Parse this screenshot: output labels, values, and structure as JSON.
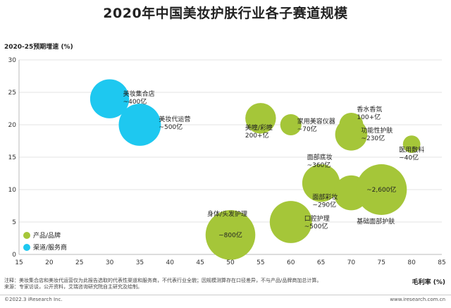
{
  "title": "2020年中国美妆护肤行业各子赛道规模",
  "notes": [
    "注释：美妆集合店和美妆代运营仅为此报告选取的代表性渠道和服务商，不代表行业全貌；因规模测算存在口径差异，不与产品/品牌商加总计算。",
    "来源：专家访谈，公开资料，艾瑞咨询研究院自主研究及绘制。"
  ],
  "footer": {
    "copyright": "©2022.3 iResearch Inc.",
    "site": "www.iresearch.com.cn"
  },
  "colors": {
    "product": "#a5c639",
    "channel": "#1ec8f0",
    "axis": "#bbbbbb",
    "grid": "#e3e3e3"
  },
  "chart_data": {
    "type": "scatter",
    "xlabel": "毛利率 (%)",
    "ylabel": "2020-25预期增速 (%)",
    "xlim": [
      15,
      85
    ],
    "ylim": [
      0,
      30
    ],
    "x_ticks": [
      15,
      20,
      25,
      30,
      35,
      40,
      45,
      50,
      55,
      60,
      65,
      70,
      75,
      80,
      85
    ],
    "y_ticks": [
      0,
      5,
      10,
      15,
      20,
      25,
      30
    ],
    "legend": {
      "placement": "bottom-left",
      "entries": [
        "产品/品牌",
        "渠道/服务商"
      ]
    },
    "series": [
      {
        "name": "产品/品牌",
        "points": [
          {
            "x": 55,
            "y": 21,
            "size": 200,
            "label": [
              "美瞳/彩瞳",
              "200+亿"
            ]
          },
          {
            "x": 60,
            "y": 20,
            "size": 70,
            "label": [
              "家用美容仪器",
              "~70亿"
            ]
          },
          {
            "x": 70,
            "y": 20,
            "size": 100,
            "label": [
              "香水香氛",
              "100+亿"
            ]
          },
          {
            "x": 70,
            "y": 18.5,
            "size": 230,
            "label": [
              "功能性护肤",
              "~230亿"
            ]
          },
          {
            "x": 80,
            "y": 17,
            "size": 40,
            "label": [
              "医用敷料",
              "~40亿"
            ]
          },
          {
            "x": 65,
            "y": 11,
            "size": 360,
            "label": [
              "面部底妆",
              "~360亿"
            ]
          },
          {
            "x": 70,
            "y": 9.5,
            "size": 290,
            "label": [
              "面部彩妆",
              "~290亿"
            ]
          },
          {
            "x": 75,
            "y": 10,
            "size": 2600,
            "label": [
              "~2,600亿",
              "基础面部护肤"
            ]
          },
          {
            "x": 60,
            "y": 5,
            "size": 500,
            "label": [
              "口腔护理",
              "~500亿"
            ]
          },
          {
            "x": 50,
            "y": 3,
            "size": 800,
            "label": [
              "身体/头发护理",
              "~800亿"
            ]
          }
        ]
      },
      {
        "name": "渠道/服务商",
        "points": [
          {
            "x": 30,
            "y": 24,
            "size": 400,
            "label": [
              "美妆集合店",
              "~400亿"
            ]
          },
          {
            "x": 35,
            "y": 20,
            "size": 500,
            "label": [
              "美妆代运营",
              "~500亿"
            ]
          }
        ]
      }
    ]
  }
}
